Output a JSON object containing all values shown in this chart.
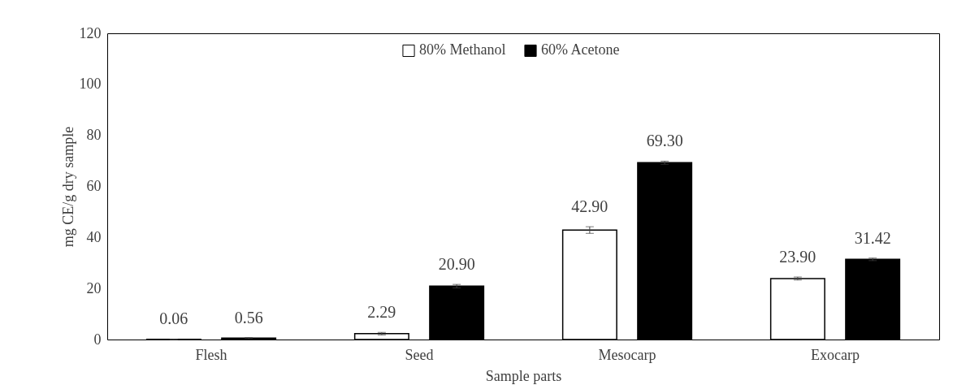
{
  "chart_data": {
    "type": "bar",
    "xlabel": "Sample parts",
    "ylabel": "mg CE/g dry sample",
    "categories": [
      "Flesh",
      "Seed",
      "Mesocarp",
      "Exocarp"
    ],
    "series": [
      {
        "name": "80% Methanol",
        "color": "#ffffff",
        "values": [
          0.06,
          2.29,
          42.9,
          23.9
        ],
        "errors": [
          0.1,
          0.5,
          1.3,
          0.6
        ],
        "value_labels": [
          "0.06",
          "2.29",
          "42.90",
          "23.90"
        ]
      },
      {
        "name": "60% Acetone",
        "color": "#000000",
        "values": [
          0.56,
          20.9,
          69.3,
          31.42
        ],
        "errors": [
          0.2,
          0.7,
          0.6,
          0.5
        ],
        "value_labels": [
          "0.56",
          "20.90",
          "69.30",
          "31.42"
        ]
      }
    ],
    "ylim": [
      0,
      120
    ],
    "yticks": [
      0,
      20,
      40,
      60,
      80,
      100,
      120
    ],
    "grid": false,
    "legend": "top"
  }
}
